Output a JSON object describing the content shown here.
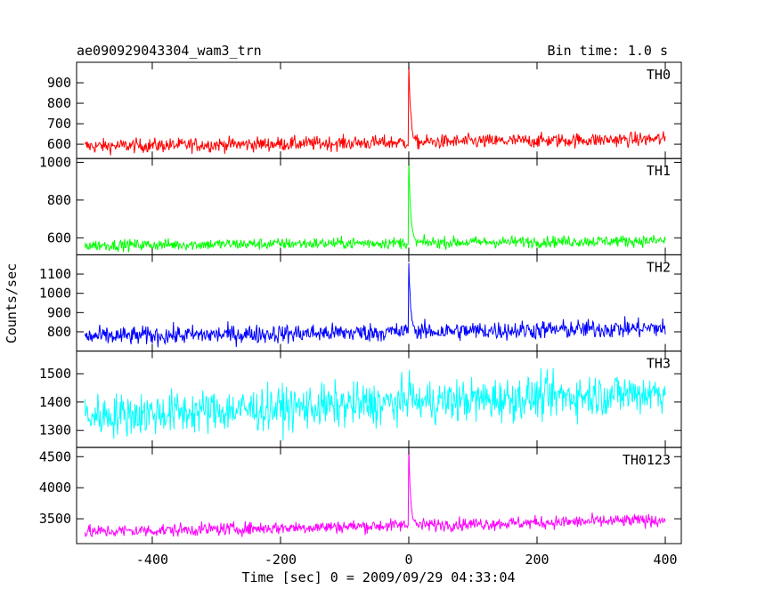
{
  "chart_data": {
    "type": "line",
    "title_left": "ae090929043304_wam3_trn",
    "title_right": "Bin time: 1.0 s",
    "xlabel": "Time [sec] 0 = 2009/09/29 04:33:04",
    "ylabel": "Counts/sec",
    "xlim": [
      -518,
      425
    ],
    "x_ticks": [
      -400,
      -200,
      0,
      200,
      400
    ],
    "panels": [
      {
        "name": "TH0",
        "color": "#ff0000",
        "ylim": [
          530,
          1000
        ],
        "y_ticks": [
          600,
          700,
          800,
          900
        ],
        "baseline_start": 590,
        "baseline_end": 625,
        "noise": 25,
        "peak": {
          "x": 0,
          "value": 1000
        }
      },
      {
        "name": "TH1",
        "color": "#00ff00",
        "ylim": [
          510,
          1020
        ],
        "y_ticks": [
          600,
          800,
          1000
        ],
        "baseline_start": 560,
        "baseline_end": 585,
        "noise": 22,
        "peak": {
          "x": 0,
          "value": 1010
        }
      },
      {
        "name": "TH2",
        "color": "#0000ff",
        "ylim": [
          700,
          1200
        ],
        "y_ticks": [
          800,
          900,
          1000,
          1100
        ],
        "baseline_start": 775,
        "baseline_end": 820,
        "noise": 35,
        "peak": {
          "x": 0,
          "value": 1160
        }
      },
      {
        "name": "TH3",
        "color": "#00ffff",
        "ylim": [
          1240,
          1580
        ],
        "y_ticks": [
          1300,
          1400,
          1500
        ],
        "baseline_start": 1350,
        "baseline_end": 1435,
        "noise": 55,
        "peak": {
          "x": 0,
          "value": 1500
        }
      },
      {
        "name": "TH0123",
        "color": "#ff00ff",
        "ylim": [
          3100,
          4650
        ],
        "y_ticks": [
          3500,
          4000,
          4500
        ],
        "baseline_start": 3290,
        "baseline_end": 3480,
        "noise": 75,
        "peak": {
          "x": 0,
          "value": 4620
        }
      }
    ]
  }
}
